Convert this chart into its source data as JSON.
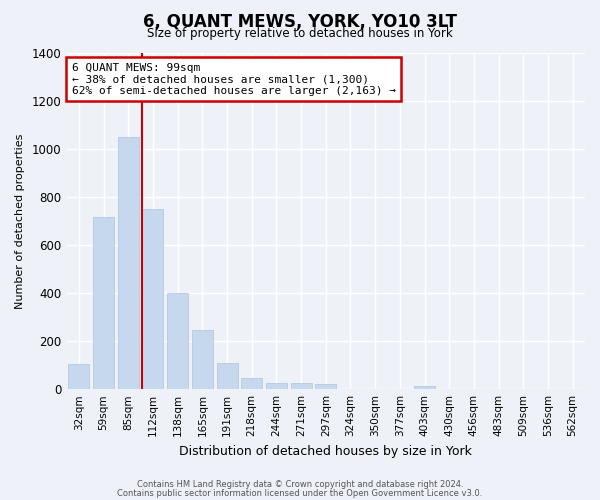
{
  "title": "6, QUANT MEWS, YORK, YO10 3LT",
  "subtitle": "Size of property relative to detached houses in York",
  "xlabel": "Distribution of detached houses by size in York",
  "ylabel": "Number of detached properties",
  "bar_color": "#c5d8ee",
  "bar_edge_color": "#aec4de",
  "categories": [
    "32sqm",
    "59sqm",
    "85sqm",
    "112sqm",
    "138sqm",
    "165sqm",
    "191sqm",
    "218sqm",
    "244sqm",
    "271sqm",
    "297sqm",
    "324sqm",
    "350sqm",
    "377sqm",
    "403sqm",
    "430sqm",
    "456sqm",
    "483sqm",
    "509sqm",
    "536sqm",
    "562sqm"
  ],
  "values": [
    105,
    718,
    1048,
    750,
    400,
    245,
    110,
    48,
    27,
    27,
    22,
    0,
    0,
    0,
    15,
    0,
    0,
    0,
    0,
    0,
    0
  ],
  "ylim": [
    0,
    1400
  ],
  "yticks": [
    0,
    200,
    400,
    600,
    800,
    1000,
    1200,
    1400
  ],
  "annotation_title": "6 QUANT MEWS: 99sqm",
  "annotation_line1": "← 38% of detached houses are smaller (1,300)",
  "annotation_line2": "62% of semi-detached houses are larger (2,163) →",
  "annotation_box_color": "#ffffff",
  "annotation_box_edge": "#cc0000",
  "vline_color": "#cc0000",
  "vline_pos": 2.57,
  "footer_line1": "Contains HM Land Registry data © Crown copyright and database right 2024.",
  "footer_line2": "Contains public sector information licensed under the Open Government Licence v3.0.",
  "background_color": "#eef2f8",
  "plot_bg_color": "#eef2f8",
  "grid_color": "#ffffff"
}
